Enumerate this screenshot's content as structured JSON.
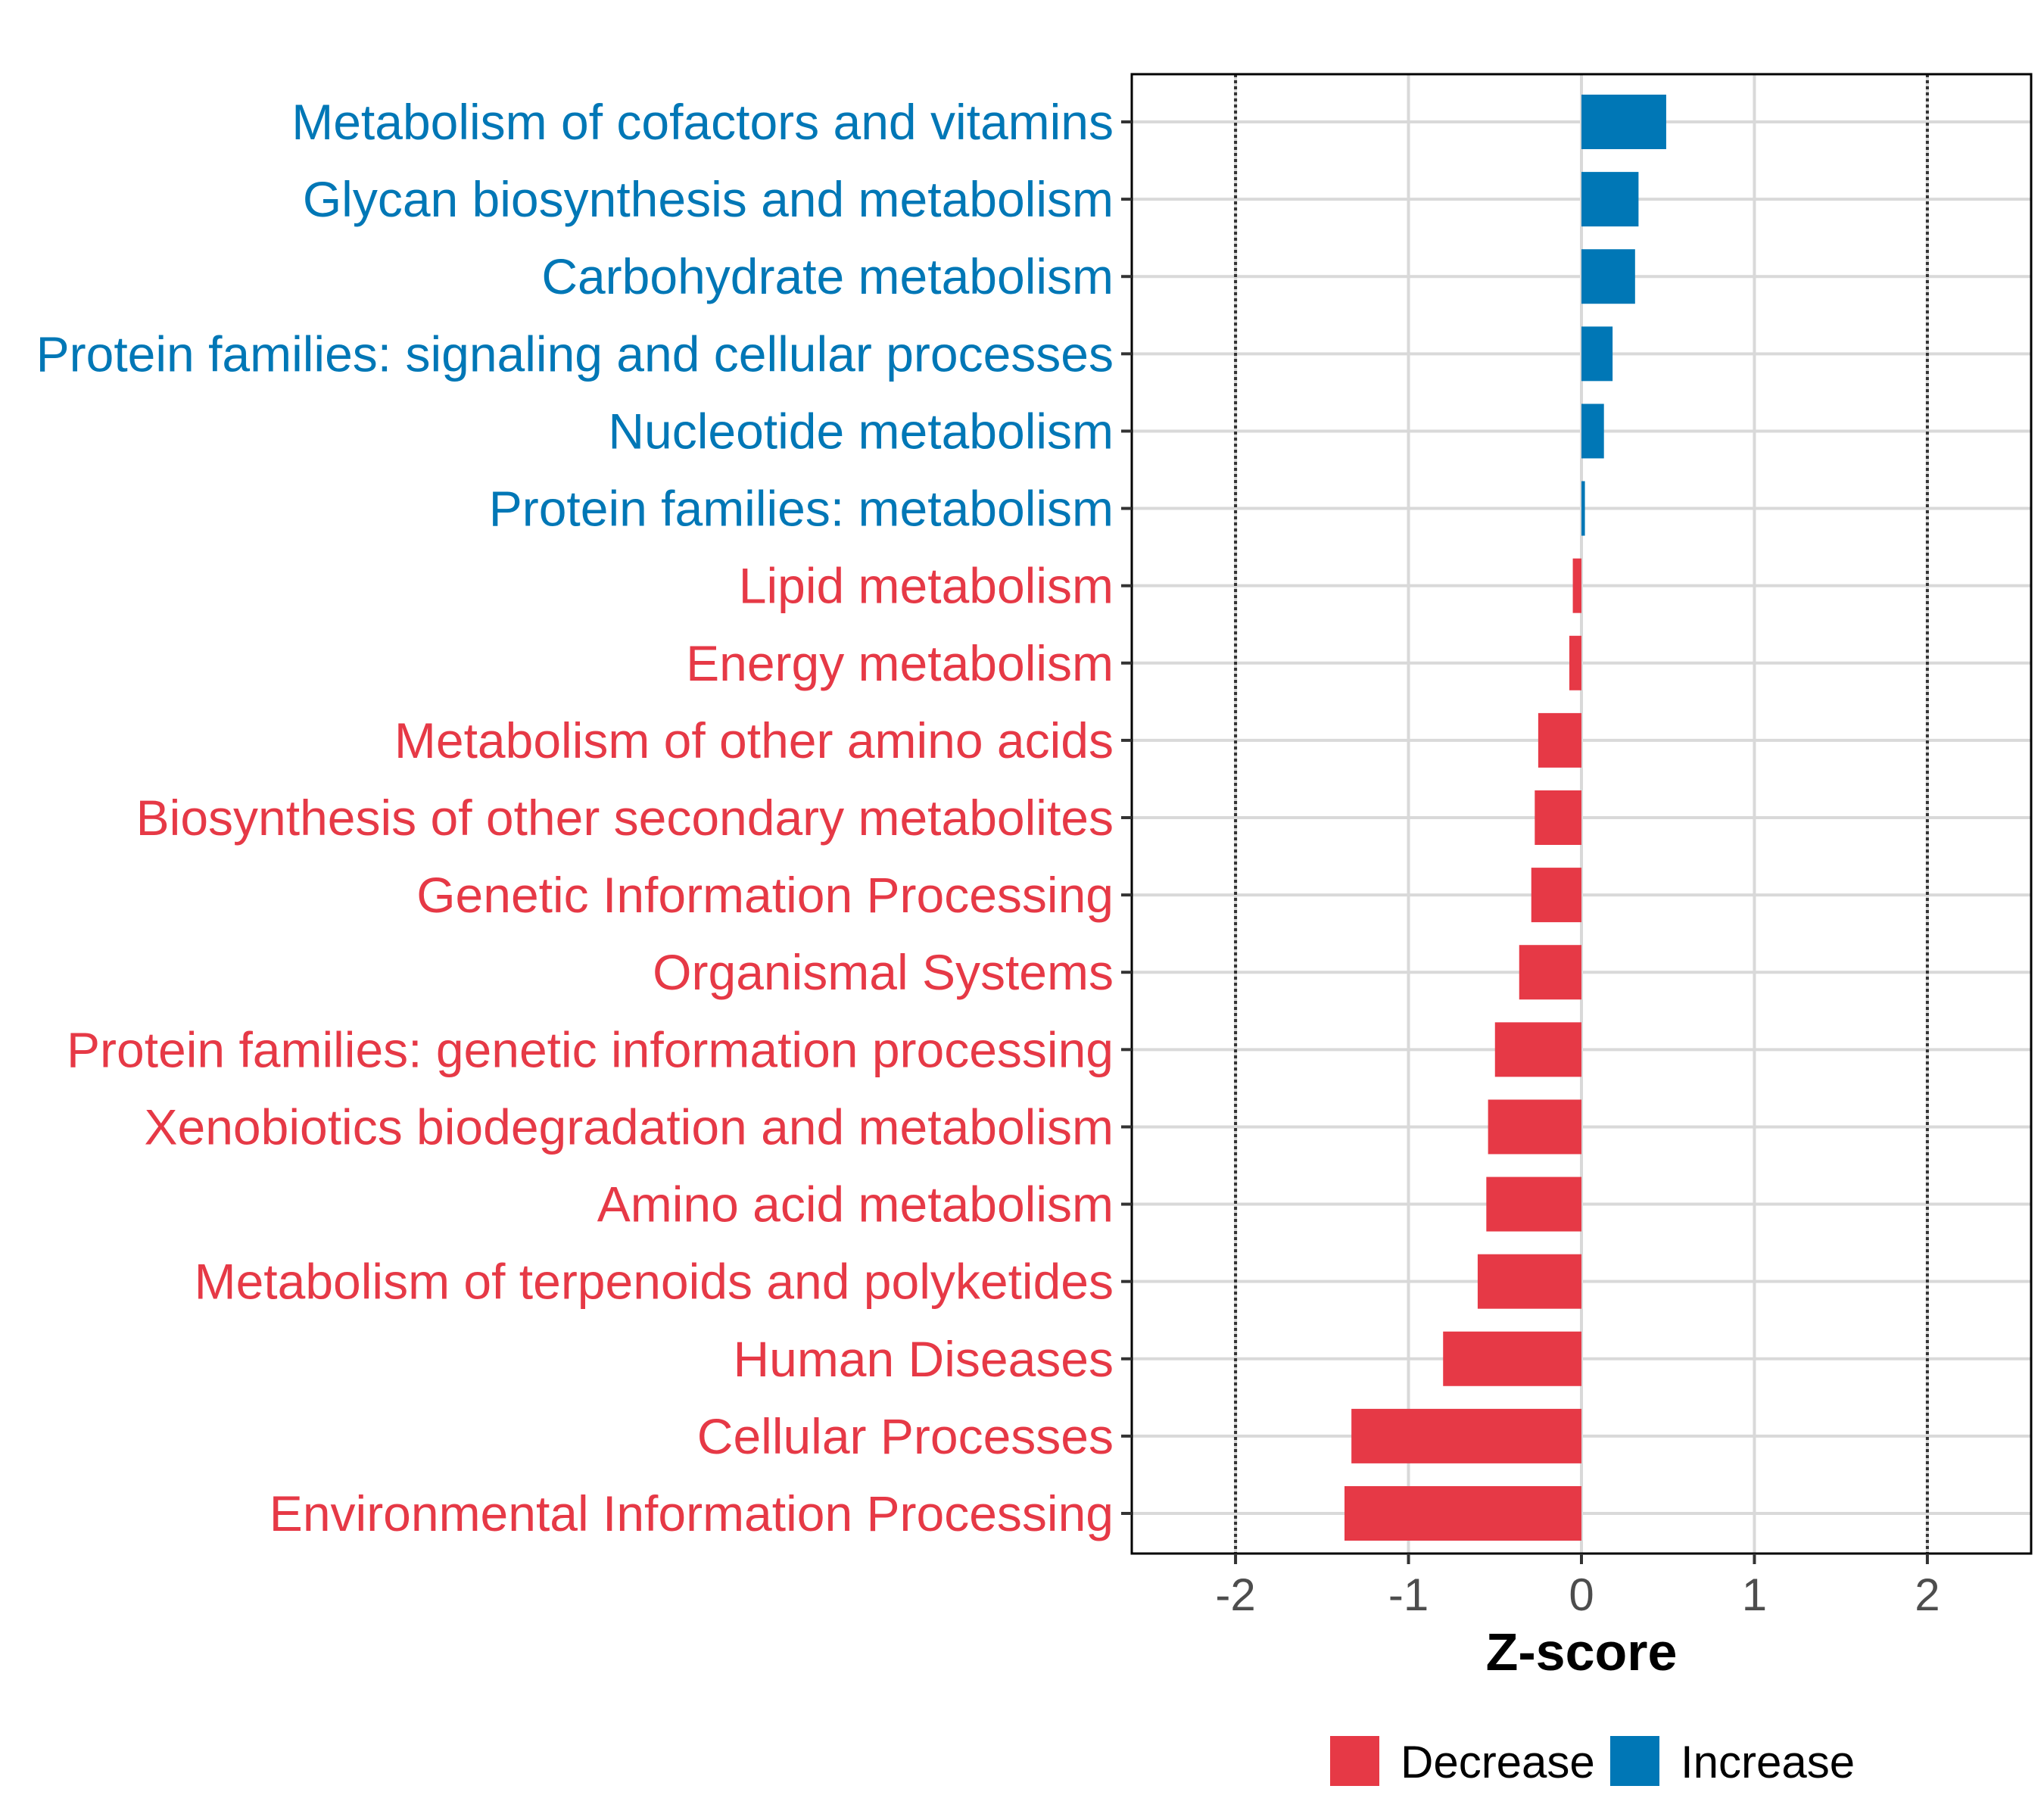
{
  "chart_data": {
    "type": "bar",
    "orientation": "horizontal",
    "title": "",
    "xlabel": "Z-score",
    "ylabel": "",
    "xlim": [
      -2.6,
      2.6
    ],
    "x_ticks": [
      -2,
      -1,
      0,
      1,
      2
    ],
    "x_tick_labels": [
      "-2",
      "-1",
      "0",
      "1",
      "2"
    ],
    "reference_lines": [
      -2,
      2
    ],
    "grid": true,
    "legend_position": "bottom",
    "categories": [
      "Metabolism of cofactors and vitamins",
      "Glycan biosynthesis and metabolism",
      "Carbohydrate metabolism",
      "Protein families: signaling and cellular processes",
      "Nucleotide metabolism",
      "Protein families: metabolism",
      "Lipid metabolism",
      "Energy metabolism",
      "Metabolism of other amino acids",
      "Biosynthesis of other secondary metabolites",
      "Genetic Information Processing",
      "Organismal Systems",
      "Protein families: genetic information processing",
      "Xenobiotics biodegradation and metabolism",
      "Amino acid metabolism",
      "Metabolism of terpenoids and polyketides",
      "Human Diseases",
      "Cellular Processes",
      "Environmental Information Processing"
    ],
    "values": [
      0.49,
      0.33,
      0.31,
      0.18,
      0.13,
      0.02,
      -0.05,
      -0.07,
      -0.25,
      -0.27,
      -0.29,
      -0.36,
      -0.5,
      -0.54,
      -0.55,
      -0.6,
      -0.8,
      -1.33,
      -1.37
    ],
    "groups": [
      "Increase",
      "Increase",
      "Increase",
      "Increase",
      "Increase",
      "Increase",
      "Decrease",
      "Decrease",
      "Decrease",
      "Decrease",
      "Decrease",
      "Decrease",
      "Decrease",
      "Decrease",
      "Decrease",
      "Decrease",
      "Decrease",
      "Decrease",
      "Decrease"
    ],
    "legend": [
      {
        "name": "Decrease",
        "color": "#E63946"
      },
      {
        "name": "Increase",
        "color": "#0077B6"
      }
    ]
  }
}
